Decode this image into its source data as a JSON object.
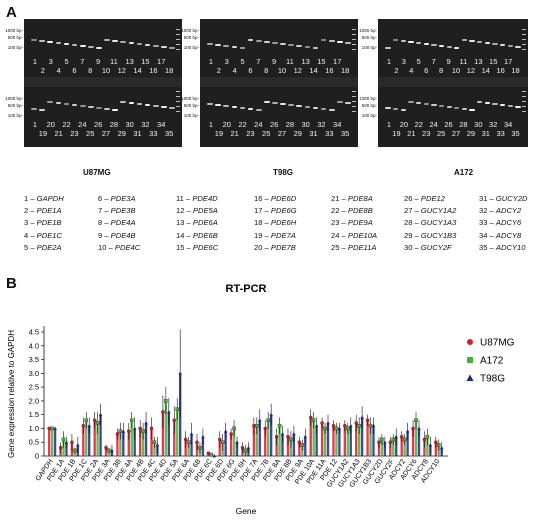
{
  "panels": {
    "a": "A",
    "b": "B"
  },
  "gels": [
    {
      "cell_line": "U87MG",
      "ladder": [
        "1000 bp-",
        "500 bp-",
        "100 bp-"
      ],
      "top_lanes": [
        "1",
        "2",
        "3",
        "4",
        "5",
        "6",
        "7",
        "8",
        "9",
        "10",
        "11",
        "12",
        "13",
        "14",
        "15",
        "16",
        "17",
        "18"
      ],
      "bottom_lanes": [
        "1",
        "19",
        "20",
        "21",
        "22",
        "23",
        "24",
        "25",
        "26",
        "27",
        "28",
        "29",
        "30",
        "31",
        "32",
        "33",
        "34",
        "35"
      ]
    },
    {
      "cell_line": "T98G",
      "ladder": [
        "1000 bp-",
        "500 bp-",
        "100 bp-"
      ],
      "top_lanes": [
        "1",
        "2",
        "3",
        "4",
        "5",
        "6",
        "7",
        "8",
        "9",
        "10",
        "11",
        "12",
        "13",
        "14",
        "15",
        "16",
        "17",
        "18"
      ],
      "bottom_lanes": [
        "1",
        "19",
        "20",
        "21",
        "22",
        "23",
        "24",
        "25",
        "26",
        "27",
        "28",
        "29",
        "30",
        "31",
        "32",
        "33",
        "34",
        "35"
      ]
    },
    {
      "cell_line": "A172",
      "ladder": [
        "1000 bp-",
        "500 bp-",
        "100 bp-"
      ],
      "top_lanes": [
        "1",
        "2",
        "3",
        "4",
        "5",
        "6",
        "7",
        "8",
        "9",
        "10",
        "11",
        "12",
        "13",
        "14",
        "15",
        "16",
        "17",
        "18"
      ],
      "bottom_lanes": [
        "1",
        "19",
        "20",
        "21",
        "22",
        "23",
        "24",
        "25",
        "26",
        "27",
        "28",
        "29",
        "30",
        "31",
        "32",
        "33",
        "34",
        "35"
      ]
    }
  ],
  "lane_legend": [
    [
      "1 – GAPDH",
      "2 – PDE1A",
      "3 – PDE1B",
      "4 – PDE1C",
      "5 – PDE2A"
    ],
    [
      "6 – PDE3A",
      "7 – PDE3B",
      "8 – PDE4A",
      "9 – PDE4B",
      "10 – PDE4C"
    ],
    [
      "11 – PDE4D",
      "12 – PDE5A",
      "13 – PDE6A",
      "14 – PDE6B",
      "15 – PDE6C"
    ],
    [
      "16 – PDE6D",
      "17 – PDE6G",
      "18 – PDE6H",
      "19 – PDE7A",
      "20 – PDE7B"
    ],
    [
      "21 – PDE8A",
      "22 – PDE8B",
      "23 – PDE9A",
      "24 – PDE10A",
      "25 – PDE11A"
    ],
    [
      "26 – PDE12",
      "27 – GUCY1A2",
      "28 – GUCY1A3",
      "29 – GUCY1B3",
      "30 – GUCY2F"
    ],
    [
      "31 – GUCY2D",
      "32 – ADCY2",
      "33 – ADCY6",
      "34 – ADCY8",
      "35 – ADCY10"
    ]
  ],
  "chart_data": {
    "type": "bar",
    "title": "RT-PCR",
    "xlabel": "Gene",
    "ylabel": "Gene expression relative to GAPDH",
    "ylim": [
      0,
      4.5
    ],
    "yticks": [
      "0",
      "0.5",
      "1.0",
      "1.5",
      "2.0",
      "2.5",
      "3.0",
      "3.5",
      "4.0",
      "4.5"
    ],
    "legend_position": "right",
    "categories": [
      "GAPDH",
      "PDE 1A",
      "PDE 1B",
      "PDE 1C",
      "PDE 2A",
      "PDE 3A",
      "PDE 3B",
      "PDE 4A",
      "PDE 4B",
      "PDE 4C",
      "PDE 4D",
      "PDE 5A",
      "PDE 6A",
      "PDE 6B",
      "PDE 6C",
      "PDE 6D",
      "PDE 6G",
      "PDE 6H",
      "PDE 7A",
      "PDE 7B",
      "PDE 8A",
      "PDE 8B",
      "PDE 9A",
      "PDE 10A",
      "PDE 11A",
      "PDE 12",
      "GUCY1A2",
      "GUCY1A3",
      "GUCY1B3",
      "GUCY2D",
      "GUCY2F",
      "ADCY2",
      "ADCY6",
      "ADCY8",
      "ADCY10"
    ],
    "series": [
      {
        "name": "U87MG",
        "color": "#d81b2e",
        "marker": "circle",
        "values": [
          1.0,
          0.3,
          0.5,
          1.1,
          1.3,
          0.3,
          0.8,
          0.9,
          1.0,
          1.0,
          1.6,
          1.3,
          0.6,
          0.5,
          0.1,
          0.6,
          0.8,
          0.3,
          1.1,
          1.0,
          0.7,
          0.7,
          0.5,
          1.4,
          1.2,
          1.1,
          1.1,
          1.2,
          1.3,
          0.5,
          0.5,
          0.7,
          1.0,
          0.6,
          0.5
        ],
        "errors": [
          0,
          0.2,
          0.3,
          0.3,
          0.3,
          0.1,
          0.2,
          0.3,
          0.3,
          0.4,
          0.6,
          0.5,
          0.3,
          0.3,
          0.05,
          0.3,
          0.2,
          0.2,
          0.3,
          0.3,
          0.3,
          0.3,
          0.2,
          0.3,
          0.2,
          0.2,
          0.2,
          0.3,
          0.2,
          0.2,
          0.2,
          0.2,
          0.3,
          0.3,
          0.2
        ]
      },
      {
        "name": "A172",
        "color": "#4caf3a",
        "marker": "square",
        "values": [
          1.0,
          0.6,
          0.2,
          1.3,
          1.2,
          0.2,
          0.9,
          1.3,
          0.9,
          0.5,
          2.0,
          1.7,
          0.5,
          0.3,
          0.05,
          0.5,
          1.0,
          0.2,
          1.1,
          1.3,
          1.1,
          0.6,
          0.4,
          1.3,
          1.0,
          1.0,
          1.0,
          1.1,
          1.1,
          0.6,
          0.6,
          0.6,
          1.3,
          0.7,
          0.4
        ],
        "errors": [
          0,
          0.3,
          0.1,
          0.3,
          0.4,
          0.1,
          0.3,
          0.3,
          0.3,
          0.2,
          0.5,
          0.4,
          0.2,
          0.2,
          0.03,
          0.3,
          0.3,
          0.2,
          0.3,
          0.3,
          0.3,
          0.3,
          0.2,
          0.3,
          0.2,
          0.2,
          0.2,
          0.3,
          0.3,
          0.2,
          0.2,
          0.2,
          0.3,
          0.3,
          0.2
        ]
      },
      {
        "name": "T98G",
        "color": "#1f2a8c",
        "marker": "triangle",
        "values": [
          1.0,
          0.5,
          0.4,
          1.1,
          1.5,
          0.2,
          0.9,
          1.0,
          1.2,
          0.4,
          1.6,
          3.0,
          0.8,
          0.7,
          0.0,
          0.9,
          0.5,
          0.3,
          1.3,
          1.5,
          0.8,
          0.8,
          0.7,
          1.1,
          1.2,
          1.0,
          1.1,
          1.4,
          1.1,
          0.5,
          0.7,
          0.9,
          1.0,
          0.4,
          0.3
        ],
        "errors": [
          0,
          0.2,
          0.3,
          0.3,
          0.4,
          0.2,
          0.3,
          0.4,
          0.4,
          0.3,
          0.5,
          1.6,
          0.4,
          0.3,
          0.02,
          0.3,
          0.2,
          0.2,
          0.4,
          0.4,
          0.3,
          0.3,
          0.3,
          0.3,
          0.3,
          0.2,
          0.3,
          0.4,
          0.3,
          0.2,
          0.3,
          0.3,
          0.3,
          0.3,
          0.2
        ]
      }
    ]
  }
}
